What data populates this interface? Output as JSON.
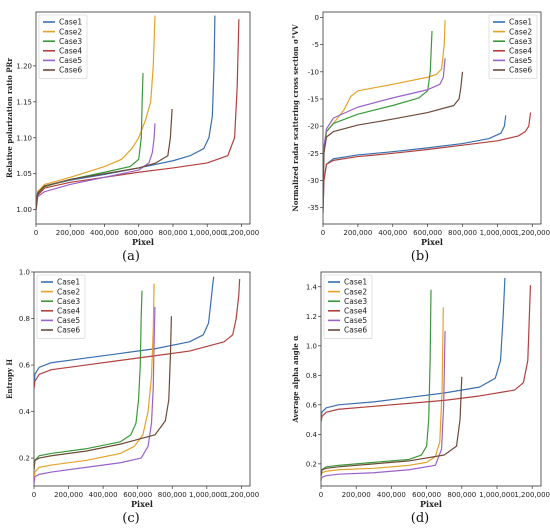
{
  "colors": {
    "Case1": "#3a6fb0",
    "Case2": "#e3a328",
    "Case3": "#3a9a3a",
    "Case4": "#b0413e",
    "Case5": "#9a62c8",
    "Case6": "#6e4a3a"
  },
  "chart_data": [
    {
      "id": "a",
      "type": "line",
      "caption": "(a)",
      "xlabel": "Pixel",
      "ylabel": "Relative polarization ratio PRr",
      "xlim": [
        0,
        1250000
      ],
      "ylim": [
        0.98,
        1.275
      ],
      "xticks": [
        0,
        200000,
        400000,
        600000,
        800000,
        1000000,
        1200000
      ],
      "xtick_labels": [
        "0",
        "200,000",
        "400,000",
        "600,000",
        "800,000",
        "1,000,000",
        "1,200,000"
      ],
      "yticks": [
        1.0,
        1.05,
        1.1,
        1.15,
        1.2
      ],
      "ytick_labels": [
        "1.00",
        "1.05",
        "1.10",
        "1.15",
        "1.20"
      ],
      "legend": "top-left",
      "series": [
        {
          "name": "Case1",
          "x": [
            0,
            10000,
            50000,
            200000,
            400000,
            600000,
            800000,
            900000,
            980000,
            1010000,
            1030000,
            1040000,
            1045000
          ],
          "y": [
            1.0,
            1.025,
            1.033,
            1.041,
            1.049,
            1.058,
            1.068,
            1.075,
            1.085,
            1.1,
            1.13,
            1.2,
            1.27
          ]
        },
        {
          "name": "Case2",
          "x": [
            0,
            10000,
            50000,
            200000,
            400000,
            500000,
            560000,
            600000,
            640000,
            670000,
            685000,
            695000
          ],
          "y": [
            1.0,
            1.025,
            1.035,
            1.045,
            1.06,
            1.07,
            1.085,
            1.1,
            1.125,
            1.15,
            1.2,
            1.27
          ]
        },
        {
          "name": "Case3",
          "x": [
            0,
            10000,
            50000,
            200000,
            400000,
            550000,
            600000,
            615000,
            620000,
            625000
          ],
          "y": [
            1.0,
            1.022,
            1.032,
            1.042,
            1.052,
            1.06,
            1.07,
            1.1,
            1.15,
            1.19
          ]
        },
        {
          "name": "Case4",
          "x": [
            0,
            10000,
            50000,
            200000,
            400000,
            600000,
            800000,
            1000000,
            1120000,
            1160000,
            1175000,
            1185000
          ],
          "y": [
            1.0,
            1.02,
            1.03,
            1.038,
            1.045,
            1.052,
            1.058,
            1.065,
            1.075,
            1.1,
            1.17,
            1.265
          ]
        },
        {
          "name": "Case5",
          "x": [
            0,
            10000,
            50000,
            200000,
            400000,
            600000,
            660000,
            680000,
            690000,
            695000
          ],
          "y": [
            1.0,
            1.018,
            1.025,
            1.035,
            1.045,
            1.055,
            1.065,
            1.08,
            1.1,
            1.12
          ]
        },
        {
          "name": "Case6",
          "x": [
            0,
            10000,
            50000,
            200000,
            400000,
            600000,
            700000,
            770000,
            785000,
            795000
          ],
          "y": [
            1.0,
            1.023,
            1.033,
            1.042,
            1.05,
            1.058,
            1.065,
            1.075,
            1.1,
            1.14
          ]
        }
      ]
    },
    {
      "id": "b",
      "type": "line",
      "caption": "(b)",
      "xlabel": "Pixel",
      "ylabel": "Normalized radar scattering cross section σ°VV",
      "xlim": [
        0,
        1250000
      ],
      "ylim": [
        -38,
        1
      ],
      "xticks": [
        0,
        200000,
        400000,
        600000,
        800000,
        1000000,
        1200000
      ],
      "xtick_labels": [
        "0",
        "200,000",
        "400,000",
        "600,000",
        "800,000",
        "1,000,000",
        "1,200,000"
      ],
      "yticks": [
        0,
        -5,
        -10,
        -15,
        -20,
        -25,
        -30,
        -35
      ],
      "ytick_labels": [
        "0",
        "-5",
        "-10",
        "-15",
        "-20",
        "-25",
        "-30",
        "-35"
      ],
      "legend": "top-right",
      "series": [
        {
          "name": "Case1",
          "x": [
            0,
            5000,
            20000,
            60000,
            200000,
            400000,
            600000,
            800000,
            950000,
            1020000,
            1040000,
            1048000
          ],
          "y": [
            -36,
            -30,
            -27,
            -26,
            -25.3,
            -24.7,
            -24,
            -23.2,
            -22.3,
            -21.3,
            -20,
            -18
          ]
        },
        {
          "name": "Case2",
          "x": [
            0,
            5000,
            20000,
            60000,
            120000,
            160000,
            200000,
            400000,
            600000,
            650000,
            680000,
            695000,
            700000
          ],
          "y": [
            -34,
            -25,
            -21,
            -19.5,
            -17,
            -14.5,
            -13.5,
            -12.3,
            -11,
            -10.5,
            -9.5,
            -5,
            -0.5
          ]
        },
        {
          "name": "Case3",
          "x": [
            0,
            5000,
            20000,
            60000,
            200000,
            400000,
            550000,
            600000,
            615000,
            625000
          ],
          "y": [
            -33,
            -24,
            -21,
            -19.5,
            -17.8,
            -16.2,
            -14.8,
            -13.5,
            -10,
            -2.5
          ]
        },
        {
          "name": "Case4",
          "x": [
            0,
            5000,
            20000,
            60000,
            200000,
            400000,
            600000,
            800000,
            1000000,
            1120000,
            1160000,
            1180000,
            1190000
          ],
          "y": [
            -36,
            -30,
            -27,
            -26.3,
            -25.6,
            -25,
            -24.3,
            -23.5,
            -22.7,
            -21.8,
            -21,
            -20,
            -17.5
          ]
        },
        {
          "name": "Case5",
          "x": [
            0,
            5000,
            20000,
            60000,
            200000,
            400000,
            600000,
            670000,
            690000,
            700000
          ],
          "y": [
            -33,
            -24,
            -20.5,
            -18.5,
            -16.5,
            -14.8,
            -13.3,
            -12.3,
            -11,
            -7.5
          ]
        },
        {
          "name": "Case6",
          "x": [
            0,
            5000,
            20000,
            60000,
            200000,
            400000,
            600000,
            750000,
            780000,
            790000,
            800000
          ],
          "y": [
            -33,
            -25,
            -22,
            -21,
            -19.8,
            -18.7,
            -17.5,
            -16.2,
            -15,
            -13,
            -10
          ]
        }
      ]
    },
    {
      "id": "c",
      "type": "line",
      "caption": "(c)",
      "xlabel": "Pixel",
      "ylabel": "Entropy H",
      "xlim": [
        0,
        1250000
      ],
      "ylim": [
        0.08,
        1.0
      ],
      "xticks": [
        0,
        200000,
        400000,
        600000,
        800000,
        1000000,
        1200000
      ],
      "xtick_labels": [
        "0",
        "200,000",
        "400,000",
        "600,000",
        "800,000",
        "1,000,000",
        "1,200,000"
      ],
      "yticks": [
        0.2,
        0.4,
        0.6,
        0.8,
        1.0
      ],
      "ytick_labels": [
        "0.2",
        "0.4",
        "0.6",
        "0.8",
        "1.0"
      ],
      "legend": "top-left",
      "series": [
        {
          "name": "Case1",
          "x": [
            0,
            5000,
            30000,
            100000,
            300000,
            500000,
            700000,
            900000,
            980000,
            1010000,
            1025000,
            1035000,
            1040000
          ],
          "y": [
            0.5,
            0.56,
            0.59,
            0.61,
            0.63,
            0.65,
            0.67,
            0.7,
            0.73,
            0.78,
            0.88,
            0.95,
            0.98
          ]
        },
        {
          "name": "Case2",
          "x": [
            0,
            5000,
            30000,
            100000,
            300000,
            500000,
            580000,
            630000,
            660000,
            680000,
            690000,
            695000
          ],
          "y": [
            0.1,
            0.14,
            0.16,
            0.17,
            0.19,
            0.22,
            0.25,
            0.3,
            0.4,
            0.55,
            0.75,
            0.95
          ]
        },
        {
          "name": "Case3",
          "x": [
            0,
            5000,
            30000,
            100000,
            300000,
            500000,
            560000,
            590000,
            605000,
            615000,
            620000,
            625000
          ],
          "y": [
            0.15,
            0.19,
            0.21,
            0.22,
            0.24,
            0.27,
            0.3,
            0.35,
            0.45,
            0.6,
            0.8,
            0.92
          ]
        },
        {
          "name": "Case4",
          "x": [
            0,
            5000,
            30000,
            100000,
            300000,
            500000,
            700000,
            900000,
            1100000,
            1150000,
            1170000,
            1185000,
            1190000
          ],
          "y": [
            0.5,
            0.53,
            0.56,
            0.58,
            0.6,
            0.62,
            0.64,
            0.66,
            0.7,
            0.73,
            0.8,
            0.9,
            0.97
          ]
        },
        {
          "name": "Case5",
          "x": [
            0,
            5000,
            30000,
            100000,
            300000,
            500000,
            620000,
            660000,
            680000,
            690000,
            695000,
            700000
          ],
          "y": [
            0.09,
            0.12,
            0.13,
            0.14,
            0.16,
            0.18,
            0.2,
            0.25,
            0.35,
            0.5,
            0.7,
            0.85
          ]
        },
        {
          "name": "Case6",
          "x": [
            0,
            5000,
            30000,
            100000,
            300000,
            500000,
            700000,
            760000,
            780000,
            790000,
            795000
          ],
          "y": [
            0.15,
            0.19,
            0.2,
            0.21,
            0.23,
            0.26,
            0.3,
            0.36,
            0.45,
            0.65,
            0.81
          ]
        }
      ]
    },
    {
      "id": "d",
      "type": "line",
      "caption": "(d)",
      "xlabel": "Pixel",
      "ylabel": "Average alpha angle α",
      "xlim": [
        0,
        1250000
      ],
      "ylim": [
        0.05,
        1.5
      ],
      "xticks": [
        0,
        200000,
        400000,
        600000,
        800000,
        1000000,
        1200000
      ],
      "xtick_labels": [
        "0",
        "200,000",
        "400,000",
        "600,000",
        "800,000",
        "1,000,000",
        "1,200,000"
      ],
      "yticks": [
        0.2,
        0.4,
        0.6,
        0.8,
        1.0,
        1.2,
        1.4
      ],
      "ytick_labels": [
        "0.2",
        "0.4",
        "0.6",
        "0.8",
        "1.0",
        "1.2",
        "1.4"
      ],
      "legend": "top-left",
      "series": [
        {
          "name": "Case1",
          "x": [
            0,
            5000,
            30000,
            100000,
            300000,
            500000,
            700000,
            900000,
            990000,
            1020000,
            1035000,
            1045000
          ],
          "y": [
            0.5,
            0.55,
            0.58,
            0.6,
            0.62,
            0.65,
            0.68,
            0.72,
            0.78,
            0.9,
            1.2,
            1.46
          ]
        },
        {
          "name": "Case2",
          "x": [
            0,
            5000,
            30000,
            100000,
            300000,
            500000,
            600000,
            650000,
            675000,
            688000,
            695000
          ],
          "y": [
            0.1,
            0.14,
            0.15,
            0.16,
            0.17,
            0.19,
            0.21,
            0.25,
            0.35,
            0.7,
            1.26
          ]
        },
        {
          "name": "Case3",
          "x": [
            0,
            5000,
            30000,
            100000,
            300000,
            500000,
            570000,
            600000,
            612000,
            620000,
            625000
          ],
          "y": [
            0.12,
            0.16,
            0.18,
            0.19,
            0.21,
            0.23,
            0.26,
            0.32,
            0.5,
            0.9,
            1.38
          ]
        },
        {
          "name": "Case4",
          "x": [
            0,
            5000,
            30000,
            100000,
            300000,
            500000,
            700000,
            900000,
            1100000,
            1150000,
            1175000,
            1190000
          ],
          "y": [
            0.48,
            0.52,
            0.55,
            0.57,
            0.59,
            0.61,
            0.63,
            0.66,
            0.7,
            0.75,
            0.9,
            1.41
          ]
        },
        {
          "name": "Case5",
          "x": [
            0,
            5000,
            30000,
            100000,
            300000,
            500000,
            650000,
            685000,
            697000,
            705000
          ],
          "y": [
            0.08,
            0.11,
            0.12,
            0.13,
            0.14,
            0.16,
            0.19,
            0.3,
            0.6,
            1.1
          ]
        },
        {
          "name": "Case6",
          "x": [
            0,
            5000,
            30000,
            100000,
            300000,
            500000,
            700000,
            770000,
            790000,
            800000
          ],
          "y": [
            0.12,
            0.16,
            0.17,
            0.18,
            0.2,
            0.22,
            0.26,
            0.32,
            0.5,
            0.79
          ]
        }
      ]
    }
  ]
}
